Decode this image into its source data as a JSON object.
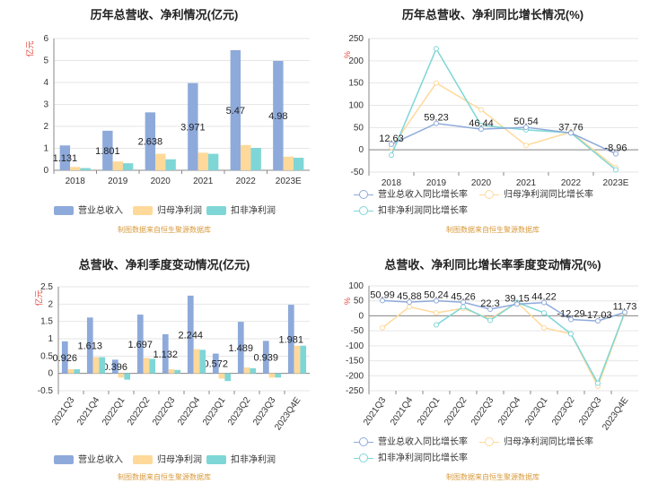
{
  "colors": {
    "revenue": "#8eaadb",
    "net_profit": "#ffd99a",
    "deducted_profit": "#7fd6d6",
    "axis": "#666666",
    "grid": "#e6e6e6",
    "unit": "#e0463c",
    "source": "#d89a3c"
  },
  "source_note": "制图数据来自恒生聚源数据库",
  "legend_bar": [
    "营业总收入",
    "归母净利润",
    "扣非净利润"
  ],
  "legend_line": [
    "营业总收入同比增长率",
    "归母净利润同比增长率",
    "扣非净利润同比增长率"
  ],
  "chart_data": [
    {
      "type": "bar",
      "title": "历年总营收、净利情况(亿元)",
      "ylabel": "亿元",
      "ylim": [
        0,
        6
      ],
      "yticks": [
        0,
        1,
        2,
        3,
        4,
        5,
        6
      ],
      "categories": [
        "2018",
        "2019",
        "2020",
        "2021",
        "2022",
        "2023E"
      ],
      "series": [
        {
          "name": "营业总收入",
          "values": [
            1.131,
            1.801,
            2.638,
            3.971,
            5.47,
            4.98
          ],
          "labels": [
            "1.131",
            "1.801",
            "2.638",
            "3.971",
            "5.47",
            "4.98"
          ]
        },
        {
          "name": "归母净利润",
          "values": [
            0.15,
            0.4,
            0.75,
            0.8,
            1.15,
            0.62
          ]
        },
        {
          "name": "扣非净利润",
          "values": [
            0.1,
            0.32,
            0.5,
            0.75,
            1.02,
            0.57
          ]
        }
      ],
      "legend": "bottom",
      "grid": true
    },
    {
      "type": "line",
      "title": "历年总营收、净利同比增长情况(%)",
      "ylabel": "%",
      "ylim": [
        -50,
        250
      ],
      "yticks": [
        -50,
        0,
        50,
        100,
        150,
        200,
        250
      ],
      "categories": [
        "2018",
        "2019",
        "2020",
        "2021",
        "2022",
        "2023E"
      ],
      "series": [
        {
          "name": "营业总收入同比增长率",
          "values": [
            12.63,
            59.23,
            46.44,
            50.54,
            37.76,
            -8.96
          ],
          "labels": [
            "12.63",
            "59.23",
            "46.44",
            "50.54",
            "37.76",
            "-8.96"
          ]
        },
        {
          "name": "归母净利润同比增长率",
          "values": [
            5,
            150,
            90,
            10,
            40,
            -40
          ]
        },
        {
          "name": "扣非净利润同比增长率",
          "values": [
            -12,
            227,
            55,
            45,
            38,
            -45
          ]
        }
      ],
      "legend": "bottom",
      "grid": true
    },
    {
      "type": "bar",
      "title": "总营收、净利季度变动情况(亿元)",
      "ylabel": "亿元",
      "ylim": [
        -0.5,
        2.5
      ],
      "yticks": [
        -0.5,
        0,
        0.5,
        1,
        1.5,
        2,
        2.5
      ],
      "categories": [
        "2021Q3",
        "2021Q4",
        "2022Q1",
        "2022Q2",
        "2022Q3",
        "2022Q4",
        "2023Q1",
        "2023Q2",
        "2023Q3",
        "2023Q4E"
      ],
      "series": [
        {
          "name": "营业总收入",
          "values": [
            0.926,
            1.613,
            0.396,
            1.697,
            1.132,
            2.244,
            0.572,
            1.489,
            0.939,
            1.981
          ],
          "labels": [
            "0.926",
            "1.613",
            "0.396",
            "1.697",
            "1.132",
            "2.244",
            "0.572",
            "1.489",
            "0.939",
            "1.981"
          ]
        },
        {
          "name": "归母净利润",
          "values": [
            0.12,
            0.47,
            -0.12,
            0.45,
            0.12,
            0.7,
            -0.15,
            0.17,
            -0.12,
            0.8
          ]
        },
        {
          "name": "扣非净利润",
          "values": [
            0.12,
            0.47,
            -0.18,
            0.42,
            0.1,
            0.68,
            -0.22,
            0.15,
            -0.12,
            0.8
          ]
        }
      ],
      "legend": "bottom",
      "grid": true
    },
    {
      "type": "line",
      "title": "总营收、净利同比增长率季度变动情况(%)",
      "ylabel": "%",
      "ylim": [
        -250,
        100
      ],
      "yticks": [
        -250,
        -200,
        -150,
        -100,
        -50,
        0,
        50,
        100
      ],
      "categories": [
        "2021Q3",
        "2021Q4",
        "2022Q1",
        "2022Q2",
        "2022Q3",
        "2022Q4",
        "2023Q1",
        "2023Q2",
        "2023Q3",
        "2023Q4E"
      ],
      "series": [
        {
          "name": "营业总收入同比增长率",
          "values": [
            50.99,
            45.88,
            50.24,
            45.26,
            22.3,
            39.15,
            44.22,
            -12.29,
            -17.03,
            11.73
          ],
          "labels": [
            "50.99",
            "45.88",
            "50.24",
            "45.26",
            "22.3",
            "39.15",
            "44.22",
            "-12.29",
            "-17.03",
            "11.73"
          ]
        },
        {
          "name": "归母净利润同比增长率",
          "values": [
            -40,
            30,
            10,
            25,
            -10,
            45,
            -40,
            -60,
            -235,
            10
          ]
        },
        {
          "name": "扣非净利润同比增长率",
          "values": [
            null,
            null,
            -30,
            30,
            -15,
            45,
            10,
            -60,
            -225,
            12
          ]
        }
      ],
      "legend": "bottom",
      "grid": true
    }
  ]
}
